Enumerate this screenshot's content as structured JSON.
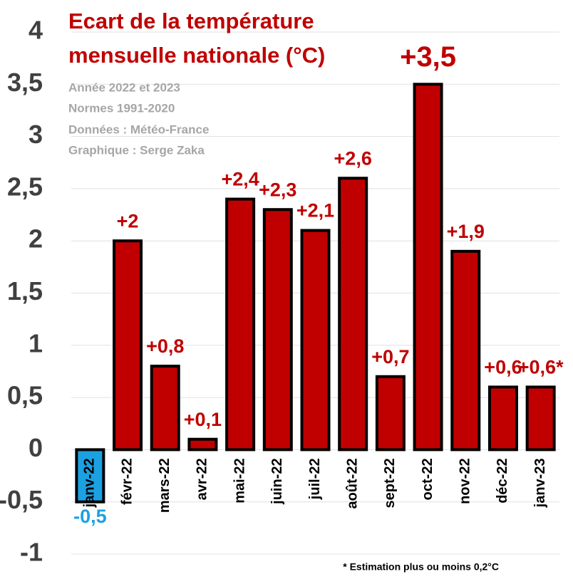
{
  "chart_data": {
    "type": "bar",
    "title_lines": [
      "Ecart de la température",
      "mensuelle nationale (°C)"
    ],
    "subtitle_lines": [
      "Année 2022 et 2023",
      "Normes 1991-2020",
      "Données : Météo-France",
      "Graphique : Serge Zaka"
    ],
    "footnote": "* Estimation plus ou moins 0,2°C",
    "categories": [
      "janv-22",
      "févr-22",
      "mars-22",
      "avr-22",
      "mai-22",
      "juin-22",
      "juil-22",
      "août-22",
      "sept-22",
      "oct-22",
      "nov-22",
      "déc-22",
      "janv-23"
    ],
    "values": [
      -0.5,
      2,
      0.8,
      0.1,
      2.4,
      2.3,
      2.1,
      2.6,
      0.7,
      3.5,
      1.9,
      0.6,
      0.6
    ],
    "value_labels": [
      "-0,5",
      "+2",
      "+0,8",
      "+0,1",
      "+2,4",
      "+2,3",
      "+2,1",
      "+2,6",
      "+0,7",
      "+3,5",
      "+1,9",
      "+0,6",
      "+0,6*"
    ],
    "colors": [
      "#1ba1e2",
      "#c00000",
      "#c00000",
      "#c00000",
      "#c00000",
      "#c00000",
      "#c00000",
      "#c00000",
      "#c00000",
      "#c00000",
      "#c00000",
      "#c00000",
      "#c00000"
    ],
    "ylim": [
      -1,
      4
    ],
    "yticks": [
      -1,
      {
        "value": -0.5,
        "label": "-0,5"
      },
      0,
      {
        "value": 0.5,
        "label": "0,5"
      },
      1,
      {
        "value": 1.5,
        "label": "1,5"
      },
      2,
      {
        "value": 2.5,
        "label": "2,5"
      },
      3,
      {
        "value": 3.5,
        "label": "3,5"
      },
      4
    ],
    "grid": true
  }
}
